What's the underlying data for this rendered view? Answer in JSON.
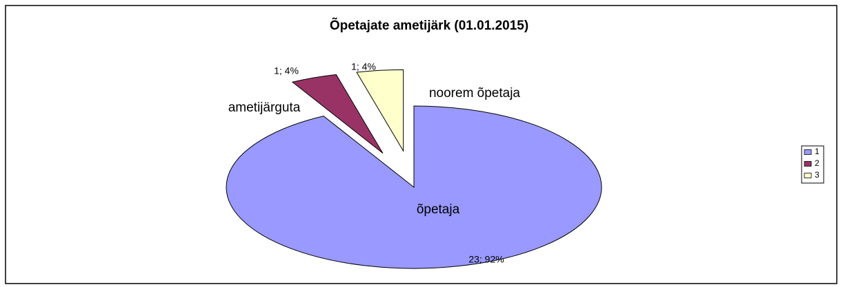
{
  "chart_data": {
    "type": "pie",
    "title": "Õpetajate ametijärk (01.01.2015)",
    "categories": [
      "1",
      "2",
      "3"
    ],
    "values": [
      23,
      1,
      1
    ],
    "value_labels": [
      "23; 92%",
      "1; 4%",
      "1; 4%"
    ],
    "annotations": [
      "õpetaja",
      "ametijärguta",
      "noorem õpetaja"
    ],
    "colors": [
      "#9999ff",
      "#993366",
      "#ffffcc"
    ],
    "legend": "right"
  }
}
